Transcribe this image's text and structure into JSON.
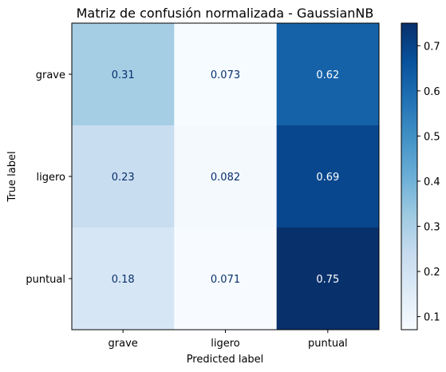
{
  "chart_data": {
    "type": "heatmap",
    "title": "Matriz de confusión normalizada - GaussianNB",
    "xlabel": "Predicted label",
    "ylabel": "True label",
    "x_categories": [
      "grave",
      "ligero",
      "puntual"
    ],
    "y_categories": [
      "grave",
      "ligero",
      "puntual"
    ],
    "values": [
      [
        0.31,
        0.073,
        0.62
      ],
      [
        0.23,
        0.082,
        0.69
      ],
      [
        0.18,
        0.071,
        0.75
      ]
    ],
    "value_labels": [
      [
        "0.31",
        "0.073",
        "0.62"
      ],
      [
        "0.23",
        "0.082",
        "0.69"
      ],
      [
        "0.18",
        "0.071",
        "0.75"
      ]
    ],
    "colormap": "Blues",
    "colorbar": {
      "range": [
        0.071,
        0.75
      ],
      "ticks": [
        0.1,
        0.2,
        0.3,
        0.4,
        0.5,
        0.6,
        0.7
      ],
      "tick_labels": [
        "0.1",
        "0.2",
        "0.3",
        "0.4",
        "0.5",
        "0.6",
        "0.7"
      ]
    },
    "grid": false
  },
  "colors": {
    "dark_text": "#08306b",
    "light_text": "#ffffff",
    "axis": "#000000"
  }
}
